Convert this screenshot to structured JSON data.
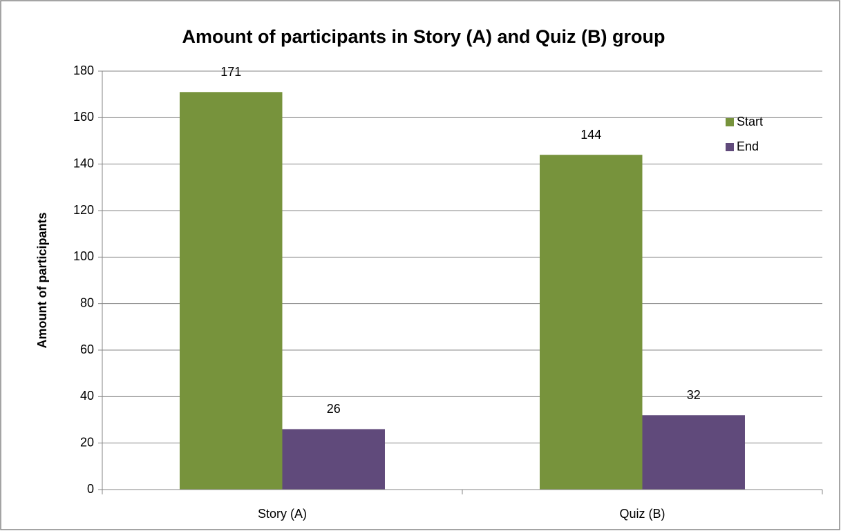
{
  "chart_data": {
    "type": "bar",
    "title": "Amount of participants in Story (A) and Quiz (B) group",
    "y_label": "Amount of participants",
    "categories": [
      "Story (A)",
      "Quiz (B)"
    ],
    "series": [
      {
        "name": "Start",
        "color": "#77933c",
        "values": [
          171,
          144
        ]
      },
      {
        "name": "End",
        "color": "#604a7b",
        "values": [
          26,
          32
        ]
      }
    ],
    "ylim": [
      0,
      180
    ],
    "yticks": [
      0,
      20,
      40,
      60,
      80,
      100,
      120,
      140,
      160,
      180
    ],
    "grid": true,
    "legend": "upper right",
    "data_labels": true
  }
}
